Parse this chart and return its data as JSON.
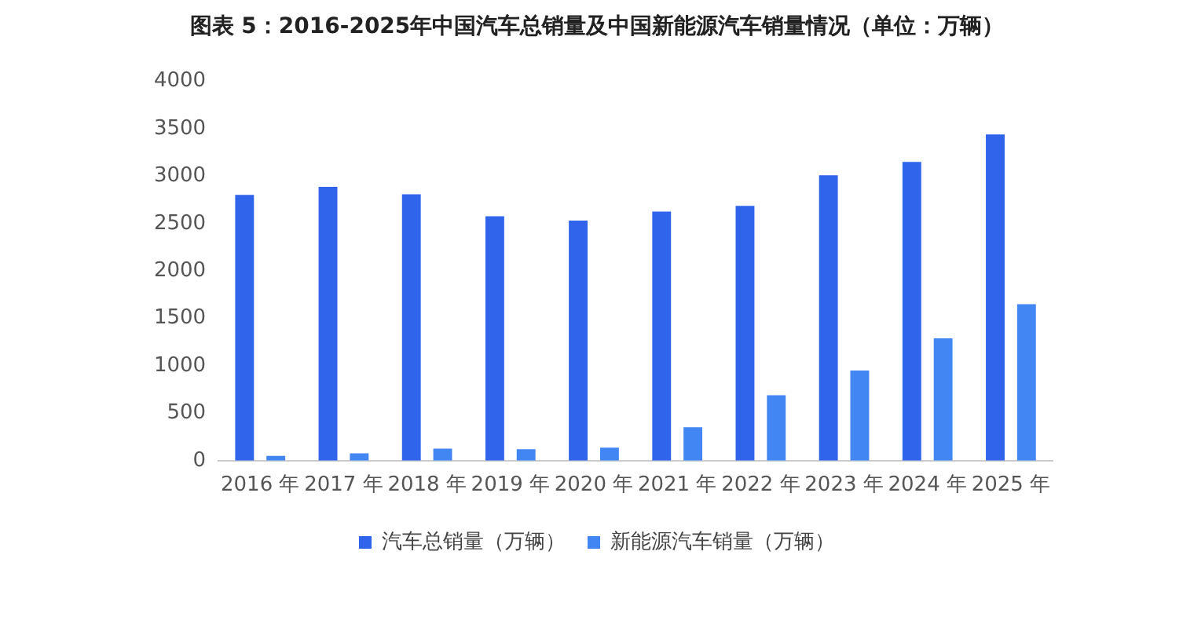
{
  "chart_data": {
    "type": "bar",
    "title": "图表 5：2016-2025年中国汽车总销量及中国新能源汽车销量情况（单位：万辆）",
    "categories": [
      "2016 年",
      "2017 年",
      "2018 年",
      "2019 年",
      "2020 年",
      "2021 年",
      "2022 年",
      "2023 年",
      "2024 年",
      "2025 年"
    ],
    "series": [
      {
        "name": "汽车总销量（万辆）",
        "color": "#2f64eb",
        "values": [
          2803,
          2888,
          2808,
          2577,
          2531,
          2627,
          2686,
          3009,
          3150,
          3440
        ]
      },
      {
        "name": "新能源汽车销量（万辆）",
        "color": "#4286f4",
        "values": [
          51,
          77,
          126,
          121,
          137,
          352,
          689,
          950,
          1290,
          1650
        ]
      }
    ],
    "ylim": [
      0,
      4000
    ],
    "yticks": [
      0,
      500,
      1000,
      1500,
      2000,
      2500,
      3000,
      3500,
      4000
    ],
    "grid": false,
    "legend": "bottom"
  }
}
